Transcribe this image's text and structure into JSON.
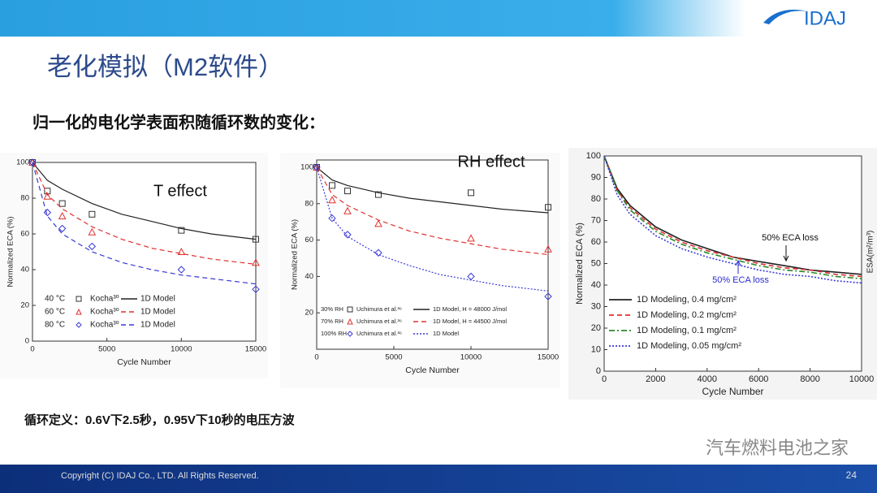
{
  "header": {
    "logo": "IDAJ"
  },
  "title": "老化模拟（M2软件）",
  "subtitle": "归一化的电化学表面积随循环数的变化：",
  "note": "循环定义：0.6V下2.5秒，0.95V下10秒的电压方波",
  "watermark": "汽车燃料电池之家",
  "footer": {
    "copyright": "Copyright (C)  IDAJ Co., LTD. All Rights Reserved.",
    "page": "24"
  },
  "chart_data": [
    {
      "type": "line",
      "annotation": "T effect",
      "x_label": "Cycle Number",
      "y_label": "Normalized ECA (%)",
      "xlim": [
        0,
        15000
      ],
      "ylim": [
        0,
        100
      ],
      "xticks": [
        0,
        5000,
        10000,
        15000
      ],
      "yticks": [
        0,
        20,
        40,
        60,
        80,
        100
      ],
      "grid": false,
      "series": [
        {
          "name": "Kocha³⁰",
          "group": "40 °C",
          "kind": "scatter",
          "marker": "square",
          "color": "#333333",
          "x": [
            0,
            1000,
            2000,
            4000,
            10000,
            15000
          ],
          "values": [
            100,
            84,
            77,
            71,
            62,
            57
          ]
        },
        {
          "name": "1D Model",
          "kind": "line",
          "dash": "solid",
          "color": "#222222",
          "x": [
            0,
            1000,
            2000,
            4000,
            6000,
            8000,
            10000,
            12000,
            15000
          ],
          "values": [
            100,
            90,
            85,
            77,
            71,
            67,
            63,
            60,
            57
          ]
        },
        {
          "name": "Kocha³⁰",
          "group": "60 °C",
          "kind": "scatter",
          "marker": "triangle",
          "color": "#e03030",
          "x": [
            0,
            1000,
            2000,
            4000,
            10000,
            15000
          ],
          "values": [
            100,
            81,
            70,
            61,
            50,
            44
          ]
        },
        {
          "name": "1D Model",
          "kind": "line",
          "dash": "dashed",
          "color": "#e03030",
          "x": [
            0,
            1000,
            2000,
            4000,
            6000,
            8000,
            10000,
            12000,
            15000
          ],
          "values": [
            100,
            82,
            74,
            64,
            57,
            52,
            49,
            46,
            43
          ]
        },
        {
          "name": "Kocha³⁰",
          "group": "80 °C",
          "kind": "scatter",
          "marker": "diamond",
          "color": "#3a3ad8",
          "x": [
            0,
            1000,
            2000,
            4000,
            10000,
            15000
          ],
          "values": [
            100,
            72,
            63,
            53,
            40,
            29
          ]
        },
        {
          "name": "1D Model",
          "kind": "line",
          "dash": "dashed",
          "color": "#3a3ad8",
          "x": [
            0,
            1000,
            2000,
            4000,
            6000,
            8000,
            10000,
            12000,
            15000
          ],
          "values": [
            100,
            70,
            60,
            50,
            44,
            40,
            37,
            35,
            32
          ]
        }
      ]
    },
    {
      "type": "line",
      "annotation": "RH effect",
      "x_label": "Cycle Number",
      "y_label": "Normalized ECA (%)",
      "xlim": [
        0,
        15000
      ],
      "ylim": [
        0,
        104
      ],
      "xticks": [
        0,
        5000,
        10000,
        15000
      ],
      "yticks": [
        20,
        40,
        60,
        80,
        100
      ],
      "grid": false,
      "series": [
        {
          "name": "Uchimura et al.³⁶",
          "group": "30% RH",
          "kind": "scatter",
          "marker": "square",
          "color": "#333333",
          "x": [
            0,
            1000,
            2000,
            4000,
            10000,
            15000
          ],
          "values": [
            100,
            90,
            87,
            85,
            86,
            78
          ]
        },
        {
          "name": "1D Model, H = 48000 J/mol",
          "kind": "line",
          "dash": "solid",
          "color": "#222222",
          "x": [
            0,
            1000,
            2000,
            4000,
            6000,
            8000,
            10000,
            12000,
            15000
          ],
          "values": [
            100,
            93,
            90,
            86,
            83,
            81,
            79,
            77,
            75
          ]
        },
        {
          "name": "Uchimura et al.³⁶",
          "group": "70% RH",
          "kind": "scatter",
          "marker": "triangle",
          "color": "#e03030",
          "x": [
            0,
            1000,
            2000,
            4000,
            10000,
            15000
          ],
          "values": [
            100,
            82,
            76,
            69,
            61,
            55
          ]
        },
        {
          "name": "1D Model, H = 44500 J/mol",
          "kind": "line",
          "dash": "dashed",
          "color": "#e03030",
          "x": [
            0,
            1000,
            2000,
            4000,
            6000,
            8000,
            10000,
            12000,
            15000
          ],
          "values": [
            100,
            85,
            79,
            71,
            65,
            61,
            58,
            55,
            52
          ]
        },
        {
          "name": "Uchimura et al.³⁶",
          "group": "100% RH",
          "kind": "scatter",
          "marker": "diamond",
          "color": "#3a3ad8",
          "x": [
            0,
            1000,
            2000,
            4000,
            10000,
            15000
          ],
          "values": [
            100,
            72,
            63,
            53,
            40,
            29
          ]
        },
        {
          "name": "1D Model",
          "kind": "line",
          "dash": "dotted",
          "color": "#3a3ad8",
          "x": [
            0,
            1000,
            2000,
            4000,
            6000,
            8000,
            10000,
            12000,
            15000
          ],
          "values": [
            100,
            72,
            62,
            52,
            46,
            41,
            38,
            35,
            32
          ]
        }
      ]
    },
    {
      "type": "line",
      "annotations": [
        "50% ECA loss",
        "50% ECA loss"
      ],
      "x_label": "Cycle Number",
      "y_label": "Normalized ECA (%)",
      "y2_label": "ESA(m²/m³)",
      "xlim": [
        0,
        10000
      ],
      "ylim": [
        0,
        100
      ],
      "xticks": [
        0,
        2000,
        4000,
        6000,
        8000,
        10000
      ],
      "yticks": [
        0,
        10,
        20,
        30,
        40,
        50,
        60,
        70,
        80,
        90,
        100
      ],
      "grid": false,
      "series": [
        {
          "name": "1D Modeling, 0.4 mg/cm²",
          "kind": "line",
          "dash": "solid",
          "color": "#222222",
          "x": [
            0,
            500,
            1000,
            2000,
            3000,
            4000,
            5000,
            6000,
            7000,
            8000,
            9000,
            10000
          ],
          "values": [
            100,
            85,
            77,
            67,
            61,
            57,
            53,
            51,
            49,
            47,
            46,
            45
          ]
        },
        {
          "name": "1D Modeling, 0.2 mg/cm²",
          "kind": "line",
          "dash": "dashed",
          "color": "#e03030",
          "x": [
            0,
            500,
            1000,
            2000,
            3000,
            4000,
            5000,
            6000,
            7000,
            8000,
            9000,
            10000
          ],
          "values": [
            100,
            84,
            76,
            66,
            60,
            56,
            53,
            50,
            48,
            47,
            45,
            44
          ]
        },
        {
          "name": "1D Modeling, 0.1 mg/cm²",
          "kind": "line",
          "dash": "dashdot",
          "color": "#2a8a2a",
          "x": [
            0,
            500,
            1000,
            2000,
            3000,
            4000,
            5000,
            6000,
            7000,
            8000,
            9000,
            10000
          ],
          "values": [
            100,
            84,
            75,
            65,
            59,
            55,
            52,
            49,
            47,
            46,
            44,
            43
          ]
        },
        {
          "name": "1D Modeling, 0.05 mg/cm²",
          "kind": "line",
          "dash": "dotted",
          "color": "#3a3ad8",
          "x": [
            0,
            500,
            1000,
            2000,
            3000,
            4000,
            5000,
            6000,
            7000,
            8000,
            9000,
            10000
          ],
          "values": [
            100,
            82,
            73,
            63,
            57,
            53,
            50,
            47,
            45,
            44,
            42,
            41
          ]
        }
      ]
    }
  ]
}
